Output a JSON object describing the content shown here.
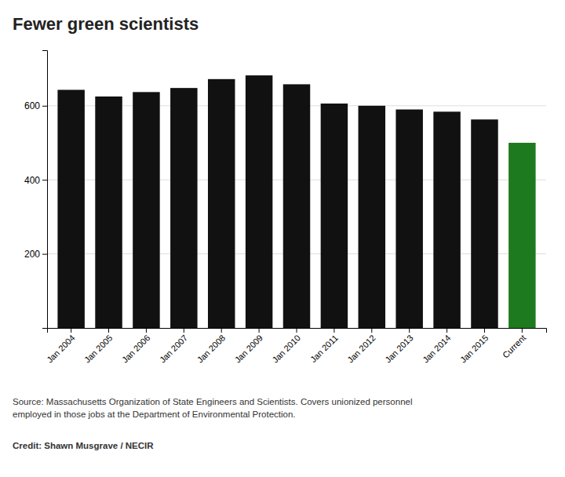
{
  "chart_data": {
    "type": "bar",
    "title": "Fewer green scientists",
    "categories": [
      "Jan 2004",
      "Jan 2005",
      "Jan 2006",
      "Jan 2007",
      "Jan 2008",
      "Jan 2009",
      "Jan 2010",
      "Jan 2011",
      "Jan 2012",
      "Jan 2013",
      "Jan 2014",
      "Jan 2015",
      "Current"
    ],
    "values": [
      643,
      625,
      637,
      648,
      672,
      682,
      658,
      606,
      600,
      590,
      584,
      563,
      500
    ],
    "colors": [
      "#111111",
      "#111111",
      "#111111",
      "#111111",
      "#111111",
      "#111111",
      "#111111",
      "#111111",
      "#111111",
      "#111111",
      "#111111",
      "#111111",
      "#1e7a1e"
    ],
    "ylim": [
      0,
      750
    ],
    "yticks": [
      200,
      400,
      600
    ],
    "grid": true,
    "annotations": [
      "Source: Massachusetts Organization of State Engineers and Scientists. Covers unionized personnel\nemployed in those jobs at the Department of Environmental Protection.",
      "Credit: Shawn Musgrave / NECIR"
    ]
  }
}
